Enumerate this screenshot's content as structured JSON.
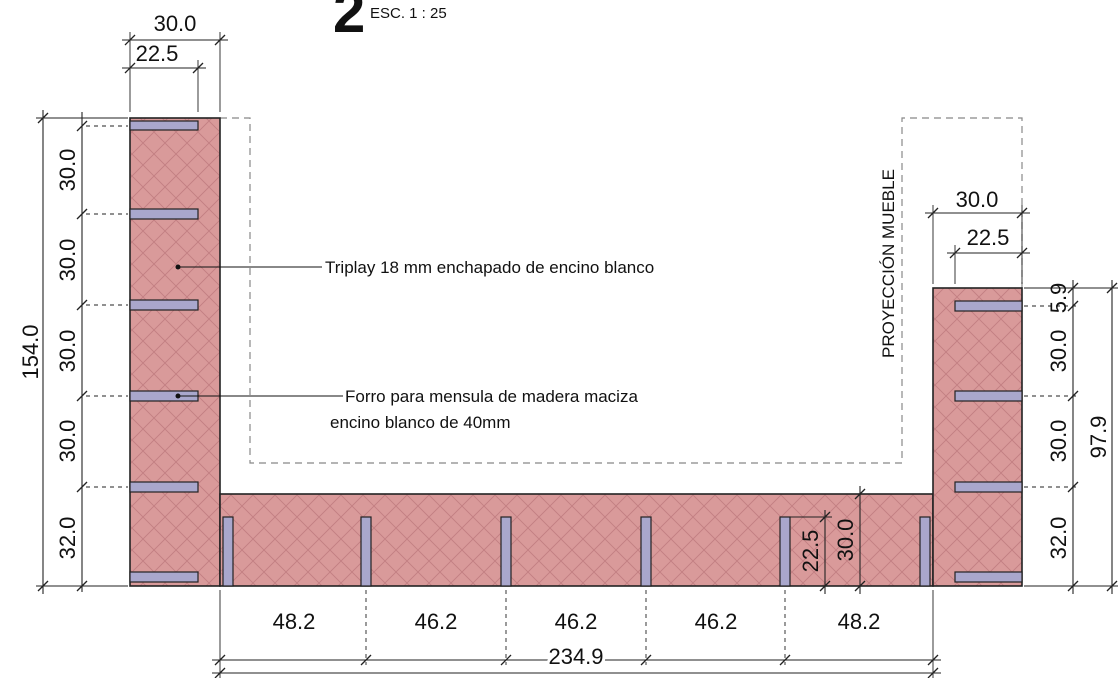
{
  "title": {
    "number": "2",
    "scale": "ESC. 1 : 25"
  },
  "annotations": {
    "plywood": "Triplay 18 mm enchapado de encino blanco",
    "bracket_line1": "Forro para mensula de madera maciza",
    "bracket_line2": "encino blanco de 40mm",
    "projection": "PROYECCIÓN MUEBLE"
  },
  "dimensions": {
    "left_panel_width": "30.0",
    "left_cleat_length": "22.5",
    "left_total_height": "154.0",
    "left_spacings": [
      "30.0",
      "30.0",
      "30.0",
      "30.0",
      "32.0"
    ],
    "right_panel_width": "30.0",
    "right_cleat_length": "22.5",
    "right_top_offset": "5.9",
    "right_spacings": [
      "30.0",
      "30.0",
      "32.0"
    ],
    "right_total_height": "97.9",
    "base_cleat_length": "22.5",
    "base_height": "30.0",
    "bottom_segments": [
      "48.2",
      "46.2",
      "46.2",
      "46.2",
      "48.2"
    ],
    "bottom_total": "234.9"
  },
  "colors": {
    "panel_fill": "#d99a9a",
    "hatch": "#c27f82",
    "cleat": "#a9a7cc",
    "projection_line": "#888888"
  }
}
